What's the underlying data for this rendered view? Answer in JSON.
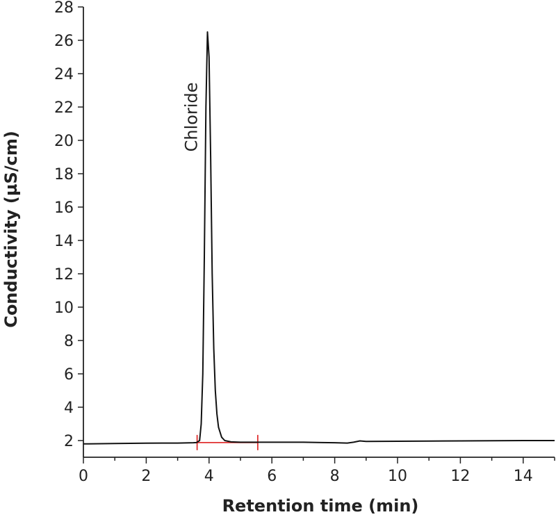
{
  "chart_data": {
    "type": "line",
    "title": "",
    "xlabel": "Retention time (min)",
    "ylabel": "Conductivity (µS/cm)",
    "xlim": [
      0,
      15
    ],
    "ylim": [
      1,
      28
    ],
    "x_ticks": [
      0,
      2,
      4,
      6,
      8,
      10,
      12,
      14
    ],
    "y_ticks": [
      2,
      4,
      6,
      8,
      10,
      12,
      14,
      16,
      18,
      20,
      22,
      24,
      26,
      28
    ],
    "grid": false,
    "legend": "none",
    "series": [
      {
        "color": "#111111",
        "x": [
          0,
          1,
          2,
          2.5,
          3,
          3.5,
          3.6,
          3.7,
          3.75,
          3.8,
          3.85,
          3.9,
          3.95,
          4.0,
          4.05,
          4.1,
          4.15,
          4.2,
          4.25,
          4.3,
          4.4,
          4.5,
          4.7,
          5.0,
          6,
          7,
          7.6,
          8.0,
          8.4,
          8.6,
          8.8,
          9,
          10,
          11,
          12,
          13,
          14,
          15
        ],
        "y": [
          1.8,
          1.82,
          1.84,
          1.85,
          1.85,
          1.87,
          1.88,
          2.0,
          3.0,
          6.0,
          13.0,
          22.0,
          26.5,
          25.0,
          19.0,
          12.0,
          7.5,
          5.0,
          3.6,
          2.8,
          2.2,
          2.0,
          1.92,
          1.9,
          1.9,
          1.9,
          1.88,
          1.87,
          1.85,
          1.9,
          1.98,
          1.95,
          1.96,
          1.97,
          1.98,
          1.99,
          2.0,
          2.0
        ]
      }
    ],
    "annotations": [
      {
        "text": "Chloride",
        "x": 3.62,
        "y": 21.4,
        "rotation": -90
      }
    ],
    "integration_marker": {
      "color": "#e03030",
      "x_start": 3.62,
      "x_end": 5.55,
      "y": 1.88
    }
  }
}
